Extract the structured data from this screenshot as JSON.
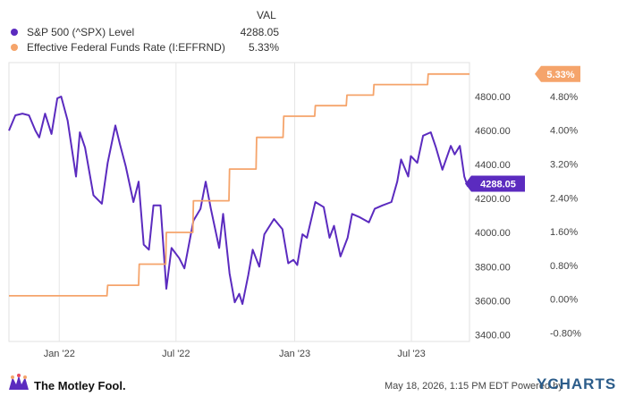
{
  "legend": {
    "header": "VAL",
    "items": [
      {
        "name": "S&P 500 (^SPX) Level",
        "value": "4288.05",
        "color": "#5b2bbf"
      },
      {
        "name": "Effective Federal Funds Rate (I:EFFRND)",
        "value": "5.33%",
        "color": "#f5a46b"
      }
    ]
  },
  "footer": {
    "brand": "The Motley Fool.",
    "date": "May 18, 2026, 1:15 PM EDT  Powered by",
    "ycharts": "YCHARTS"
  },
  "chart_data": {
    "type": "line",
    "x_tick_labels": [
      "Jan '22",
      "Jul '22",
      "Jan '23",
      "Jul '23"
    ],
    "x_range": [
      "2021-10-15",
      "2023-09-29"
    ],
    "left_axis": {
      "ticks": [
        "3400.00",
        "3600.00",
        "3800.00",
        "4000.00",
        "4200.00",
        "4400.00",
        "4600.00",
        "4800.00"
      ],
      "ylim": [
        3360,
        5000
      ]
    },
    "right_axis": {
      "ticks": [
        "-0.80%",
        "0.00%",
        "0.80%",
        "1.60%",
        "2.40%",
        "3.20%",
        "4.00%",
        "4.80%"
      ],
      "ylim": [
        -1.0,
        5.6
      ]
    },
    "grid": "vertical",
    "series": [
      {
        "name": "S&P 500 (^SPX) Level",
        "axis": "left",
        "color": "#5b2bbf",
        "end_label": "4288.05",
        "points": [
          [
            "2021-10-15",
            4600
          ],
          [
            "2021-10-25",
            4690
          ],
          [
            "2021-11-05",
            4700
          ],
          [
            "2021-11-15",
            4690
          ],
          [
            "2021-11-25",
            4600
          ],
          [
            "2021-12-01",
            4560
          ],
          [
            "2021-12-10",
            4700
          ],
          [
            "2021-12-20",
            4580
          ],
          [
            "2021-12-29",
            4790
          ],
          [
            "2022-01-04",
            4800
          ],
          [
            "2022-01-14",
            4660
          ],
          [
            "2022-01-27",
            4330
          ],
          [
            "2022-02-02",
            4590
          ],
          [
            "2022-02-10",
            4500
          ],
          [
            "2022-02-23",
            4220
          ],
          [
            "2022-03-08",
            4170
          ],
          [
            "2022-03-17",
            4410
          ],
          [
            "2022-03-29",
            4630
          ],
          [
            "2022-04-05",
            4520
          ],
          [
            "2022-04-14",
            4390
          ],
          [
            "2022-04-26",
            4180
          ],
          [
            "2022-05-04",
            4300
          ],
          [
            "2022-05-12",
            3930
          ],
          [
            "2022-05-20",
            3900
          ],
          [
            "2022-05-27",
            4160
          ],
          [
            "2022-06-07",
            4160
          ],
          [
            "2022-06-16",
            3670
          ],
          [
            "2022-06-24",
            3910
          ],
          [
            "2022-07-06",
            3850
          ],
          [
            "2022-07-14",
            3790
          ],
          [
            "2022-07-28",
            4070
          ],
          [
            "2022-08-08",
            4140
          ],
          [
            "2022-08-16",
            4300
          ],
          [
            "2022-08-24",
            4140
          ],
          [
            "2022-09-06",
            3910
          ],
          [
            "2022-09-12",
            4110
          ],
          [
            "2022-09-22",
            3760
          ],
          [
            "2022-09-30",
            3590
          ],
          [
            "2022-10-07",
            3640
          ],
          [
            "2022-10-12",
            3580
          ],
          [
            "2022-10-21",
            3750
          ],
          [
            "2022-10-28",
            3900
          ],
          [
            "2022-11-07",
            3800
          ],
          [
            "2022-11-15",
            3990
          ],
          [
            "2022-11-30",
            4080
          ],
          [
            "2022-12-13",
            4020
          ],
          [
            "2022-12-22",
            3820
          ],
          [
            "2022-12-30",
            3840
          ],
          [
            "2023-01-05",
            3810
          ],
          [
            "2023-01-13",
            3990
          ],
          [
            "2023-01-20",
            3970
          ],
          [
            "2023-02-02",
            4180
          ],
          [
            "2023-02-15",
            4150
          ],
          [
            "2023-02-24",
            3970
          ],
          [
            "2023-03-03",
            4040
          ],
          [
            "2023-03-13",
            3860
          ],
          [
            "2023-03-24",
            3970
          ],
          [
            "2023-03-31",
            4110
          ],
          [
            "2023-04-12",
            4090
          ],
          [
            "2023-04-26",
            4060
          ],
          [
            "2023-05-05",
            4140
          ],
          [
            "2023-05-17",
            4160
          ],
          [
            "2023-05-31",
            4180
          ],
          [
            "2023-06-09",
            4300
          ],
          [
            "2023-06-15",
            4430
          ],
          [
            "2023-06-26",
            4330
          ],
          [
            "2023-06-30",
            4450
          ],
          [
            "2023-07-10",
            4410
          ],
          [
            "2023-07-19",
            4570
          ],
          [
            "2023-07-31",
            4590
          ],
          [
            "2023-08-08",
            4500
          ],
          [
            "2023-08-18",
            4370
          ],
          [
            "2023-08-31",
            4510
          ],
          [
            "2023-09-06",
            4460
          ],
          [
            "2023-09-14",
            4510
          ],
          [
            "2023-09-21",
            4330
          ],
          [
            "2023-09-26",
            4275
          ],
          [
            "2023-09-29",
            4288.05
          ]
        ]
      },
      {
        "name": "Effective Federal Funds Rate (I:EFFRND)",
        "axis": "right",
        "color": "#f5a46b",
        "end_label": "5.33%",
        "points": [
          [
            "2021-10-15",
            0.08
          ],
          [
            "2022-03-16",
            0.08
          ],
          [
            "2022-03-17",
            0.33
          ],
          [
            "2022-05-04",
            0.33
          ],
          [
            "2022-05-05",
            0.83
          ],
          [
            "2022-06-15",
            0.83
          ],
          [
            "2022-06-16",
            1.58
          ],
          [
            "2022-07-27",
            1.58
          ],
          [
            "2022-07-28",
            2.33
          ],
          [
            "2022-09-21",
            2.33
          ],
          [
            "2022-09-22",
            3.08
          ],
          [
            "2022-11-02",
            3.08
          ],
          [
            "2022-11-03",
            3.83
          ],
          [
            "2022-12-14",
            3.83
          ],
          [
            "2022-12-15",
            4.33
          ],
          [
            "2023-02-01",
            4.33
          ],
          [
            "2023-02-02",
            4.58
          ],
          [
            "2023-03-22",
            4.58
          ],
          [
            "2023-03-23",
            4.83
          ],
          [
            "2023-05-03",
            4.83
          ],
          [
            "2023-05-04",
            5.08
          ],
          [
            "2023-07-26",
            5.08
          ],
          [
            "2023-07-27",
            5.33
          ],
          [
            "2023-09-29",
            5.33
          ]
        ]
      }
    ]
  }
}
